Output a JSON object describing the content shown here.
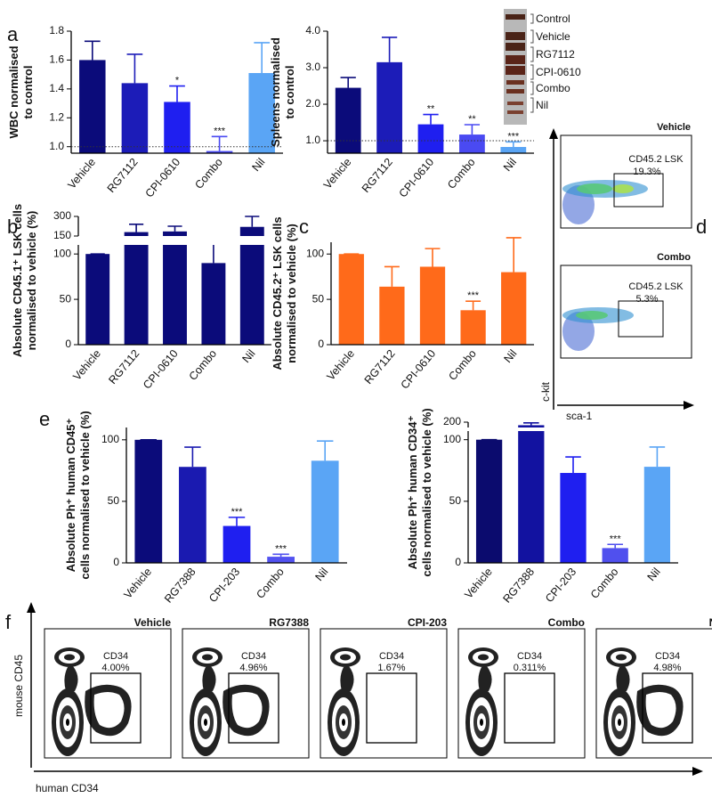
{
  "panel_labels": [
    "a",
    "b",
    "c",
    "d",
    "e",
    "f"
  ],
  "chart_data": [
    {
      "type": "bar",
      "y_label": [
        "WBC normalised",
        "to control"
      ],
      "categories": [
        "Vehicle",
        "RG7112",
        "CPI-0610",
        "Combo",
        "Nil"
      ],
      "values": [
        1.6,
        1.44,
        1.31,
        0.97,
        1.51
      ],
      "errors": [
        0.13,
        0.2,
        0.11,
        0.1,
        0.21
      ],
      "significance": [
        null,
        null,
        "*",
        "***",
        null
      ],
      "colors": [
        "#0b0b7a",
        "#1c1cb8",
        "#1f1ff0",
        "#4a4af2",
        "#5aa5f5"
      ],
      "ylim": [
        0.955,
        1.8
      ],
      "yticks": [
        {
          "value": 1,
          "label": "1.0"
        },
        1.2,
        1.4,
        1.6,
        1.8
      ],
      "reference_line": 1
    },
    {
      "type": "bar",
      "y_label": [
        "Spleens normalised",
        "to control"
      ],
      "categories": [
        "Vehicle",
        "RG7112",
        "CPI-0610",
        "Combo",
        "Nil"
      ],
      "values": [
        2.45,
        3.15,
        1.45,
        1.17,
        0.83
      ],
      "errors": [
        0.28,
        0.68,
        0.27,
        0.27,
        0.14
      ],
      "significance": [
        null,
        null,
        "**",
        "**",
        "***"
      ],
      "colors": [
        "#0b0b7a",
        "#1c1cb8",
        "#1f1ff0",
        "#4a4af2",
        "#5aa5f5"
      ],
      "ylim": [
        0.66,
        4.0
      ],
      "yticks": [
        {
          "value": 1,
          "label": "1.0"
        },
        {
          "value": 2,
          "label": "2.0"
        },
        {
          "value": 3,
          "label": "3.0"
        },
        {
          "value": 4,
          "label": "4.0"
        }
      ],
      "reference_line": 1,
      "inset_labels": [
        "Control",
        "Vehicle",
        "RG7112",
        "CPI-0610",
        "Combo",
        "Nil"
      ]
    },
    {
      "type": "bar",
      "y_label": [
        "Absolute CD45.1⁺ LSK cells",
        "normalised to vehicle (%)"
      ],
      "categories": [
        "Vehicle",
        "RG7112",
        "CPI-0610",
        "Combo",
        "Nil"
      ],
      "values": [
        100,
        180,
        185,
        90,
        220
      ],
      "errors": [
        0,
        60,
        40,
        55,
        80
      ],
      "significance": [
        null,
        null,
        null,
        null,
        null
      ],
      "colors": [
        "#0b0b7a",
        "#0b0b7a",
        "#0b0b7a",
        "#0b0b7a",
        "#0b0b7a"
      ],
      "ylim": [
        0,
        300
      ],
      "ybreak": [
        110,
        150
      ],
      "yticks": [
        0,
        50,
        100,
        150,
        300
      ]
    },
    {
      "type": "bar",
      "y_label": [
        "Absolute CD45.2⁺ LSK cells",
        "normalised to vehicle (%)"
      ],
      "categories": [
        "Vehicle",
        "RG7112",
        "CPI-0610",
        "Combo",
        "Nil"
      ],
      "values": [
        100,
        64,
        86,
        38,
        80
      ],
      "errors": [
        0,
        22,
        20,
        10,
        38
      ],
      "significance": [
        null,
        null,
        null,
        "***",
        null
      ],
      "colors": [
        "#ff6a1a",
        "#ff6a1a",
        "#ff6a1a",
        "#ff6a1a",
        "#ff6a1a"
      ],
      "ylim": [
        0,
        113
      ],
      "yticks": [
        0,
        50,
        100
      ]
    },
    {
      "type": "bar",
      "y_label": [
        "Absolute Ph⁺ human CD45⁺",
        "cells normalised to vehicle (%)"
      ],
      "categories": [
        "Vehicle",
        "RG7388",
        "CPI-203",
        "Combo",
        "Nil"
      ],
      "values": [
        100,
        78,
        30,
        5,
        83
      ],
      "errors": [
        0,
        16,
        7,
        2,
        16
      ],
      "significance": [
        null,
        null,
        "***",
        "***",
        null
      ],
      "colors": [
        "#0b0b7a",
        "#1a1ab0",
        "#1f1ff0",
        "#5252f0",
        "#5aa5f5"
      ],
      "ylim": [
        0,
        110
      ],
      "yticks": [
        0,
        50,
        100
      ]
    },
    {
      "type": "bar",
      "y_label": [
        "Absolute Ph⁺ human CD34⁺",
        "cells normalised to vehicle (%)"
      ],
      "categories": [
        "Vehicle",
        "RG7388",
        "CPI-203",
        "Combo",
        "Nil"
      ],
      "values": [
        100,
        196,
        73,
        12,
        78
      ],
      "errors": [
        0,
        3,
        13,
        3,
        16
      ],
      "significance": [
        null,
        null,
        null,
        "***",
        null
      ],
      "colors": [
        "#0b0b6e",
        "#1212a0",
        "#1f1ff0",
        "#5050ee",
        "#5aa5f5"
      ],
      "ylim": [
        0,
        200
      ],
      "ybreak": [
        107,
        193
      ],
      "yticks": [
        0,
        50,
        100,
        200
      ]
    }
  ],
  "flow_d": {
    "y_label": "c-kit",
    "x_label": "sca-1",
    "plots": [
      {
        "title": "Vehicle",
        "gate": "CD45.2 LSK",
        "percent": "19.3%"
      },
      {
        "title": "Combo",
        "gate": "CD45.2 LSK",
        "percent": "5.3%"
      }
    ]
  },
  "flow_f": {
    "y_label": "mouse CD45",
    "x_label": "human CD34",
    "plots": [
      {
        "title": "Vehicle",
        "gate": "CD34",
        "percent": "4.00%"
      },
      {
        "title": "RG7388",
        "gate": "CD34",
        "percent": "4.96%"
      },
      {
        "title": "CPI-203",
        "gate": "CD34",
        "percent": "1.67%"
      },
      {
        "title": "Combo",
        "gate": "CD34",
        "percent": "0.311%"
      },
      {
        "title": "Nil",
        "gate": "CD34",
        "percent": "4.98%"
      }
    ]
  }
}
